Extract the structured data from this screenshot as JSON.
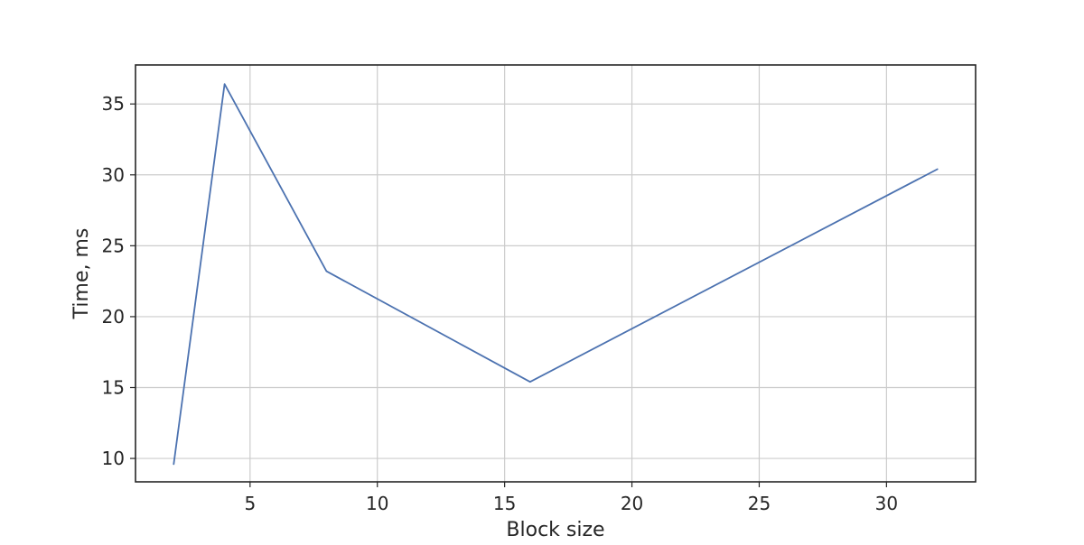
{
  "chart_data": {
    "type": "line",
    "title": "",
    "xlabel": "Block size",
    "ylabel": "Time, ms",
    "xlim": [
      0.5,
      33.5
    ],
    "ylim": [
      8.35,
      37.75
    ],
    "x_ticks": [
      5,
      10,
      15,
      20,
      25,
      30
    ],
    "y_ticks": [
      10,
      15,
      20,
      25,
      30,
      35
    ],
    "grid": true,
    "series": [
      {
        "color": "#4c72b0",
        "x": [
          2,
          4,
          8,
          16,
          32
        ],
        "y": [
          9.6,
          36.4,
          23.2,
          15.4,
          30.4
        ]
      }
    ]
  }
}
